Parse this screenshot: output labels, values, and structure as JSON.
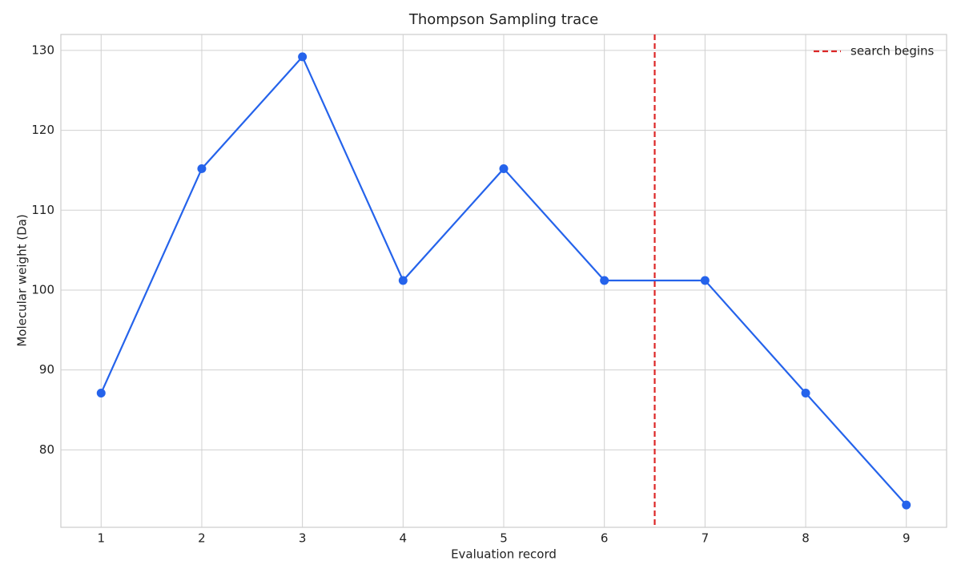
{
  "chart_data": {
    "type": "line",
    "title": "Thompson Sampling trace",
    "x_label": "Evaluation record",
    "y_label": "Molecular weight (Da)",
    "x": [
      1,
      2,
      3,
      4,
      5,
      6,
      7,
      8,
      9
    ],
    "values": [
      87.1,
      115.2,
      129.2,
      101.2,
      115.2,
      101.2,
      101.2,
      87.1,
      73.1
    ],
    "color": "#2563eb",
    "xlim": [
      0.6,
      9.4
    ],
    "xticks": [
      1,
      2,
      3,
      4,
      5,
      6,
      7,
      8,
      9
    ],
    "ylim": [
      70.3,
      132.0
    ],
    "yticks": [
      80,
      90,
      100,
      110,
      120,
      130
    ],
    "grid": true,
    "legend": "upper right",
    "vline": {
      "x": 6.5,
      "label": "search begins",
      "color": "#dc2626"
    }
  }
}
